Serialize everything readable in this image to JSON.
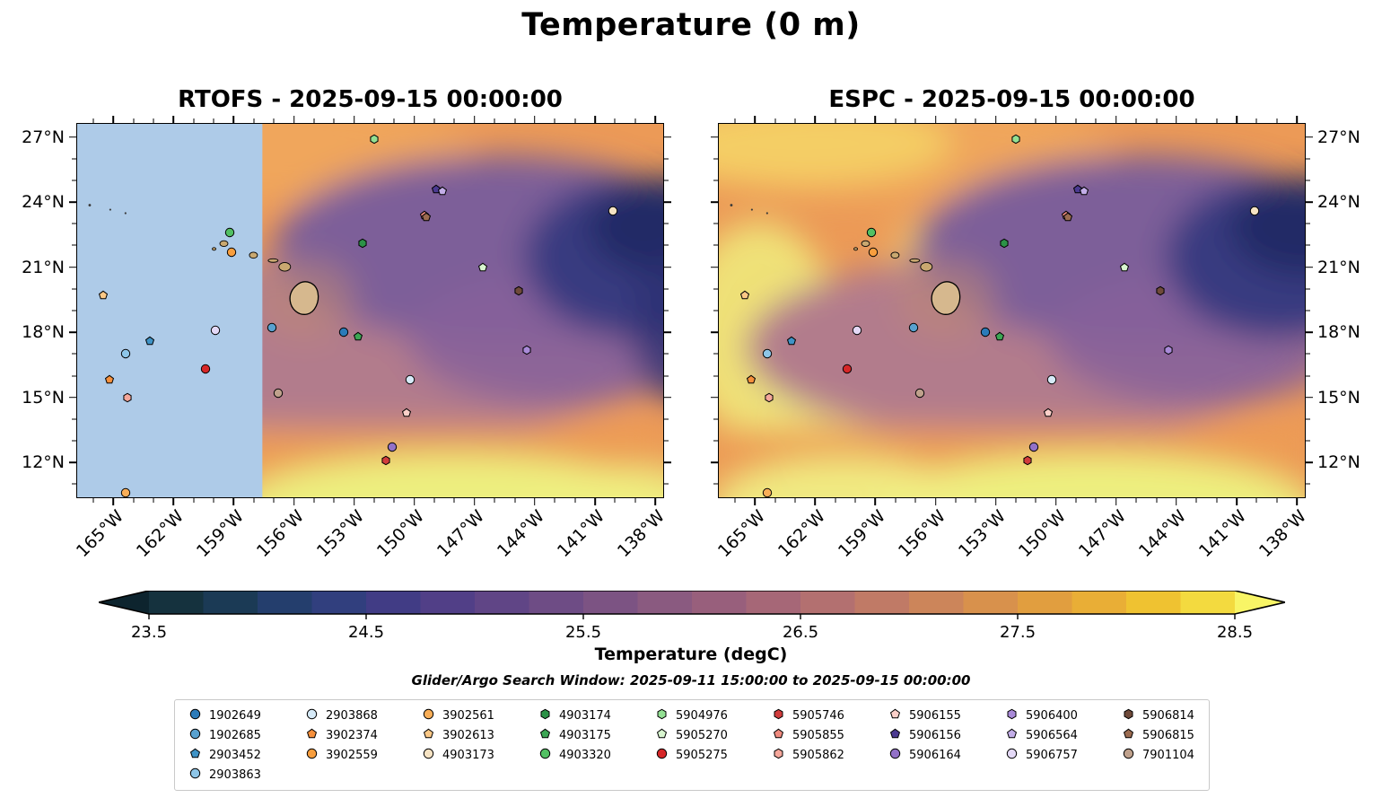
{
  "title": "Temperature (0 m)",
  "panels": [
    {
      "title": "RTOFS - 2025-09-15 00:00:00"
    },
    {
      "title": "ESPC - 2025-09-15 00:00:00"
    }
  ],
  "axes": {
    "x_tick_labels": [
      "165°W",
      "162°W",
      "159°W",
      "156°W",
      "153°W",
      "150°W",
      "147°W",
      "144°W",
      "141°W",
      "138°W"
    ],
    "x_tick_lons": [
      -165,
      -162,
      -159,
      -156,
      -153,
      -150,
      -147,
      -144,
      -141,
      -138
    ],
    "y_tick_labels": [
      "27°N",
      "24°N",
      "21°N",
      "18°N",
      "15°N",
      "12°N"
    ],
    "y_tick_lats": [
      27,
      24,
      21,
      18,
      15,
      12
    ]
  },
  "colorbar": {
    "label": "Temperature (degC)",
    "tick_labels": [
      "23.5",
      "24.5",
      "25.5",
      "26.5",
      "27.5",
      "28.5"
    ],
    "tick_values": [
      23.5,
      24.5,
      25.5,
      26.5,
      27.5,
      28.5
    ],
    "vmin": 23.5,
    "vmax": 28.5,
    "colors": [
      "#15323e",
      "#1b3a55",
      "#243e6d",
      "#313f7e",
      "#413c85",
      "#513f87",
      "#604586",
      "#6e4c85",
      "#7c5383",
      "#8a5a80",
      "#985f7c",
      "#a66777",
      "#b37070",
      "#c07a66",
      "#cc855a",
      "#d8914c",
      "#e19e3f",
      "#e9ae36",
      "#efc231",
      "#f3da3f"
    ],
    "extend_low_color": "#0d242e",
    "extend_high_color": "#f8f566"
  },
  "subtitle": "Glider/Argo Search Window: 2025-09-11 15:00:00 to 2025-09-15 00:00:00",
  "legend": {
    "columns": [
      [
        "1902649",
        "1902685",
        "2903452",
        "2903863"
      ],
      [
        "2903868",
        "3902374",
        "3902559"
      ],
      [
        "3902561",
        "3902613",
        "4903173"
      ],
      [
        "4903174",
        "4903175",
        "4903320"
      ],
      [
        "5904976",
        "5905270",
        "5905275"
      ],
      [
        "5905746",
        "5905855",
        "5905862"
      ],
      [
        "5906155",
        "5906156",
        "5906164"
      ],
      [
        "5906400",
        "5906564",
        "5906757"
      ],
      [
        "5906814",
        "5906815",
        "7901104"
      ]
    ]
  },
  "chart_data": {
    "type": "heatmap",
    "variable": "Temperature (degC) at 0 m",
    "models": [
      "RTOFS",
      "ESPC"
    ],
    "valid_time": "2025-09-15 00:00:00",
    "lon_range": [
      -166.8,
      -137.6
    ],
    "lat_range": [
      10.4,
      27.6
    ],
    "rtofs_masked_lon_range": [
      -166.8,
      -157.6
    ],
    "temperature_range_degC": [
      23.5,
      28.5
    ],
    "floats": [
      {
        "id": "1902649",
        "shape": "circle",
        "color": "#2b7bb9",
        "lon": -153.5,
        "lat": 18.0
      },
      {
        "id": "1902685",
        "shape": "circle",
        "color": "#58a1cf",
        "lon": -157.1,
        "lat": 18.2
      },
      {
        "id": "2903452",
        "shape": "pentagon",
        "color": "#3f93c6",
        "lon": -163.2,
        "lat": 17.6
      },
      {
        "id": "2903863",
        "shape": "circle",
        "color": "#8ec6e8",
        "lon": -164.4,
        "lat": 17.0
      },
      {
        "id": "2903868",
        "shape": "circle",
        "color": "#d6eaf8",
        "lon": -150.2,
        "lat": 15.8
      },
      {
        "id": "3902374",
        "shape": "pentagon",
        "color": "#f6903c",
        "lon": -165.2,
        "lat": 15.8
      },
      {
        "id": "3902559",
        "shape": "circle",
        "color": "#f89e3e",
        "lon": -159.1,
        "lat": 21.7
      },
      {
        "id": "3902561",
        "shape": "circle",
        "color": "#f9ae57",
        "lon": -164.4,
        "lat": 10.6
      },
      {
        "id": "3902613",
        "shape": "pentagon",
        "color": "#fbc886",
        "lon": -165.5,
        "lat": 19.7
      },
      {
        "id": "4903173",
        "shape": "circle",
        "color": "#f6e3c3",
        "lon": -140.1,
        "lat": 23.6
      },
      {
        "id": "4903174",
        "shape": "hexagon",
        "color": "#2c9247",
        "lon": -152.6,
        "lat": 22.1
      },
      {
        "id": "4903175",
        "shape": "pentagon",
        "color": "#3ca654",
        "lon": -152.8,
        "lat": 17.8
      },
      {
        "id": "4903320",
        "shape": "circle",
        "color": "#52c063",
        "lon": -159.2,
        "lat": 22.6
      },
      {
        "id": "5904976",
        "shape": "hexagon",
        "color": "#93e093",
        "lon": -152.0,
        "lat": 26.9
      },
      {
        "id": "5905270",
        "shape": "pentagon",
        "color": "#d8f5cf",
        "lon": -146.6,
        "lat": 21.0
      },
      {
        "id": "5905275",
        "shape": "circle",
        "color": "#d62728",
        "lon": -160.4,
        "lat": 16.3
      },
      {
        "id": "5905746",
        "shape": "hexagon",
        "color": "#d13c3c",
        "lon": -151.4,
        "lat": 12.1
      },
      {
        "id": "5905855",
        "shape": "pentagon",
        "color": "#ef8a7e",
        "lon": -149.5,
        "lat": 23.4
      },
      {
        "id": "5905862",
        "shape": "hexagon",
        "color": "#f5a79b",
        "lon": -164.3,
        "lat": 15.0
      },
      {
        "id": "5906155",
        "shape": "pentagon",
        "color": "#fbd0c9",
        "lon": -150.4,
        "lat": 14.3
      },
      {
        "id": "5906156",
        "shape": "pentagon",
        "color": "#4b3a91",
        "lon": -148.9,
        "lat": 24.6
      },
      {
        "id": "5906164",
        "shape": "circle",
        "color": "#9271c7",
        "lon": -151.1,
        "lat": 12.7
      },
      {
        "id": "5906400",
        "shape": "hexagon",
        "color": "#a98ad8",
        "lon": -144.4,
        "lat": 17.2
      },
      {
        "id": "5906564",
        "shape": "pentagon",
        "color": "#c3aee8",
        "lon": -148.6,
        "lat": 24.5
      },
      {
        "id": "5906757",
        "shape": "circle",
        "color": "#e4d9f7",
        "lon": -159.9,
        "lat": 18.1
      },
      {
        "id": "5906814",
        "shape": "hexagon",
        "color": "#6f4a3a",
        "lon": -144.8,
        "lat": 19.9
      },
      {
        "id": "5906815",
        "shape": "pentagon",
        "color": "#9b6b50",
        "lon": -149.4,
        "lat": 23.3
      },
      {
        "id": "7901104",
        "shape": "circle",
        "color": "#bfa18c",
        "lon": -156.8,
        "lat": 15.2
      }
    ]
  }
}
